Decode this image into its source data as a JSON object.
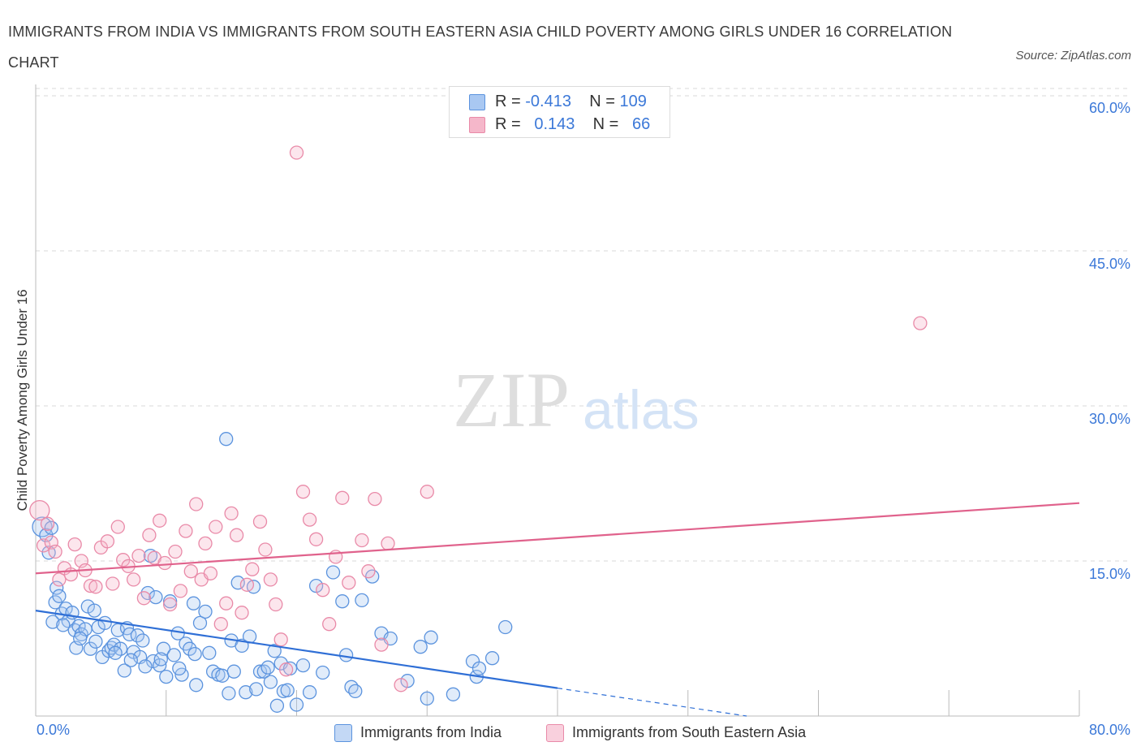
{
  "title": "IMMIGRANTS FROM INDIA VS IMMIGRANTS FROM SOUTH EASTERN ASIA CHILD POVERTY AMONG GIRLS UNDER 16 CORRELATION CHART",
  "source": "Source: ZipAtlas.com",
  "watermark": {
    "zip": "ZIP",
    "atlas": "atlas"
  },
  "legend": {
    "r_label": "R =",
    "n_label": "N =",
    "rows": [
      {
        "r": "-0.413",
        "n": "109",
        "color": "#a9c8f2"
      },
      {
        "r": "0.143",
        "n": "66",
        "color": "#f5b7ca"
      }
    ]
  },
  "bottom_legend": [
    {
      "label": "Immigrants from India",
      "color": "#a9c8f2"
    },
    {
      "label": "Immigrants from South Eastern Asia",
      "color": "#f5b7ca"
    }
  ],
  "colors": {
    "india_fill": "#a9c8f2",
    "india_stroke": "#5b93de",
    "india_line": "#2f6fd6",
    "sea_fill": "#f5b7ca",
    "sea_stroke": "#e98aa8",
    "sea_line": "#e0628c",
    "tick_text": "#3b78d8",
    "grid": "#d9d9d9"
  },
  "chart_data": {
    "type": "scatter",
    "title": "IMMIGRANTS FROM INDIA VS IMMIGRANTS FROM SOUTH EASTERN ASIA CHILD POVERTY AMONG GIRLS UNDER 16 CORRELATION CHART",
    "xlabel": "",
    "ylabel": "Child Poverty Among Girls Under 16",
    "xlim": [
      0,
      80
    ],
    "ylim": [
      0,
      60
    ],
    "x_tick_labels": [
      "0.0%",
      "80.0%"
    ],
    "y_ticks": [
      15,
      30,
      45,
      60
    ],
    "y_tick_labels": [
      "15.0%",
      "30.0%",
      "45.0%",
      "60.0%"
    ],
    "grid": true,
    "legend_position": "top-center",
    "series": [
      {
        "name": "Immigrants from India",
        "r": -0.413,
        "n": 109,
        "trend": {
          "x0": 0,
          "y0": 10.2,
          "x1": 40,
          "y1": 2.7,
          "dashed_to_x": 54.5,
          "dashed_to_y": 0
        },
        "points": [
          [
            0.5,
            18.3
          ],
          [
            0.8,
            17.5
          ],
          [
            1.0,
            15.8
          ],
          [
            1.2,
            18.2
          ],
          [
            1.5,
            11.0
          ],
          [
            1.6,
            12.4
          ],
          [
            1.8,
            11.6
          ],
          [
            2.0,
            9.9
          ],
          [
            2.3,
            10.4
          ],
          [
            2.5,
            9.2
          ],
          [
            2.8,
            10.0
          ],
          [
            3.0,
            8.3
          ],
          [
            3.1,
            6.6
          ],
          [
            3.3,
            8.7
          ],
          [
            3.5,
            7.9
          ],
          [
            3.8,
            8.4
          ],
          [
            4.0,
            10.6
          ],
          [
            4.2,
            6.5
          ],
          [
            4.5,
            10.2
          ],
          [
            4.8,
            8.6
          ],
          [
            5.1,
            5.7
          ],
          [
            5.3,
            9.0
          ],
          [
            5.6,
            6.3
          ],
          [
            5.8,
            6.6
          ],
          [
            6.0,
            6.9
          ],
          [
            6.3,
            8.3
          ],
          [
            6.5,
            6.5
          ],
          [
            6.8,
            4.4
          ],
          [
            7.0,
            8.5
          ],
          [
            7.2,
            7.9
          ],
          [
            7.5,
            6.2
          ],
          [
            7.8,
            7.8
          ],
          [
            8.0,
            5.7
          ],
          [
            8.2,
            7.3
          ],
          [
            8.6,
            11.9
          ],
          [
            8.8,
            15.5
          ],
          [
            9.0,
            5.3
          ],
          [
            9.2,
            11.5
          ],
          [
            9.5,
            4.9
          ],
          [
            9.8,
            6.5
          ],
          [
            10.0,
            3.8
          ],
          [
            10.3,
            11.1
          ],
          [
            10.6,
            5.9
          ],
          [
            10.9,
            8.0
          ],
          [
            11.2,
            4.0
          ],
          [
            11.5,
            7.0
          ],
          [
            11.8,
            6.5
          ],
          [
            12.1,
            10.9
          ],
          [
            12.3,
            3.0
          ],
          [
            12.6,
            9.0
          ],
          [
            13.0,
            10.1
          ],
          [
            13.3,
            6.1
          ],
          [
            13.6,
            4.3
          ],
          [
            14.0,
            4.0
          ],
          [
            14.3,
            3.9
          ],
          [
            14.6,
            26.8
          ],
          [
            14.8,
            2.2
          ],
          [
            15.0,
            7.3
          ],
          [
            15.2,
            4.3
          ],
          [
            15.5,
            12.9
          ],
          [
            15.8,
            6.8
          ],
          [
            16.1,
            2.3
          ],
          [
            16.4,
            7.7
          ],
          [
            16.7,
            12.5
          ],
          [
            16.9,
            2.6
          ],
          [
            17.2,
            4.3
          ],
          [
            17.5,
            4.3
          ],
          [
            17.8,
            4.7
          ],
          [
            18.0,
            3.3
          ],
          [
            18.3,
            6.3
          ],
          [
            18.5,
            1.0
          ],
          [
            18.8,
            5.1
          ],
          [
            19.0,
            2.4
          ],
          [
            19.3,
            2.5
          ],
          [
            19.5,
            4.6
          ],
          [
            20.0,
            1.1
          ],
          [
            20.5,
            4.9
          ],
          [
            21.0,
            2.3
          ],
          [
            21.5,
            12.6
          ],
          [
            22.0,
            4.2
          ],
          [
            22.8,
            13.9
          ],
          [
            23.5,
            11.1
          ],
          [
            23.8,
            5.9
          ],
          [
            24.2,
            2.8
          ],
          [
            24.5,
            2.4
          ],
          [
            25.0,
            11.2
          ],
          [
            25.8,
            13.5
          ],
          [
            26.5,
            8.0
          ],
          [
            27.2,
            7.5
          ],
          [
            28.5,
            3.4
          ],
          [
            29.5,
            6.7
          ],
          [
            30.0,
            1.7
          ],
          [
            30.3,
            7.6
          ],
          [
            32.0,
            2.1
          ],
          [
            33.5,
            5.3
          ],
          [
            33.8,
            3.8
          ],
          [
            34.0,
            4.6
          ],
          [
            35.0,
            5.6
          ],
          [
            36.0,
            8.6
          ],
          [
            1.3,
            9.1
          ],
          [
            2.1,
            8.8
          ],
          [
            3.4,
            7.5
          ],
          [
            4.6,
            7.2
          ],
          [
            6.1,
            6.1
          ],
          [
            7.3,
            5.4
          ],
          [
            8.4,
            4.8
          ],
          [
            9.6,
            5.5
          ],
          [
            11.0,
            4.6
          ],
          [
            12.2,
            6.0
          ]
        ]
      },
      {
        "name": "Immigrants from South Eastern Asia",
        "r": 0.143,
        "n": 66,
        "trend": {
          "x0": 0,
          "y0": 13.8,
          "x1": 80,
          "y1": 20.6
        },
        "points": [
          [
            0.3,
            19.9
          ],
          [
            0.6,
            16.5
          ],
          [
            0.9,
            18.6
          ],
          [
            1.2,
            16.8
          ],
          [
            1.5,
            15.9
          ],
          [
            1.8,
            13.2
          ],
          [
            2.2,
            14.3
          ],
          [
            2.7,
            13.7
          ],
          [
            3.0,
            16.6
          ],
          [
            3.5,
            15.0
          ],
          [
            3.8,
            14.1
          ],
          [
            4.2,
            12.6
          ],
          [
            4.6,
            12.5
          ],
          [
            5.0,
            16.3
          ],
          [
            5.5,
            16.9
          ],
          [
            5.9,
            12.8
          ],
          [
            6.3,
            18.3
          ],
          [
            6.7,
            15.1
          ],
          [
            7.1,
            14.5
          ],
          [
            7.5,
            13.2
          ],
          [
            7.9,
            15.5
          ],
          [
            8.3,
            11.4
          ],
          [
            8.7,
            17.5
          ],
          [
            9.1,
            15.3
          ],
          [
            9.5,
            18.9
          ],
          [
            9.9,
            14.8
          ],
          [
            10.3,
            10.8
          ],
          [
            10.7,
            15.9
          ],
          [
            11.1,
            12.1
          ],
          [
            11.5,
            17.9
          ],
          [
            11.9,
            14.0
          ],
          [
            12.3,
            20.5
          ],
          [
            12.7,
            13.2
          ],
          [
            13.0,
            16.7
          ],
          [
            13.4,
            13.8
          ],
          [
            13.8,
            18.3
          ],
          [
            14.2,
            8.9
          ],
          [
            14.6,
            10.9
          ],
          [
            15.0,
            19.6
          ],
          [
            15.4,
            17.5
          ],
          [
            15.8,
            10.0
          ],
          [
            16.2,
            12.7
          ],
          [
            16.6,
            14.2
          ],
          [
            17.2,
            18.8
          ],
          [
            17.6,
            16.1
          ],
          [
            18.0,
            13.2
          ],
          [
            18.4,
            10.8
          ],
          [
            18.8,
            7.4
          ],
          [
            19.2,
            4.5
          ],
          [
            20.0,
            54.5
          ],
          [
            20.5,
            21.7
          ],
          [
            21.0,
            19.0
          ],
          [
            21.5,
            17.1
          ],
          [
            22.0,
            12.2
          ],
          [
            22.5,
            8.9
          ],
          [
            23.0,
            15.4
          ],
          [
            23.5,
            21.1
          ],
          [
            24.0,
            12.9
          ],
          [
            25.0,
            17.0
          ],
          [
            25.5,
            14.0
          ],
          [
            26.0,
            21.0
          ],
          [
            26.5,
            6.9
          ],
          [
            27.0,
            16.7
          ],
          [
            28.0,
            3.0
          ],
          [
            30.0,
            21.7
          ],
          [
            67.8,
            38.0
          ]
        ]
      }
    ]
  }
}
